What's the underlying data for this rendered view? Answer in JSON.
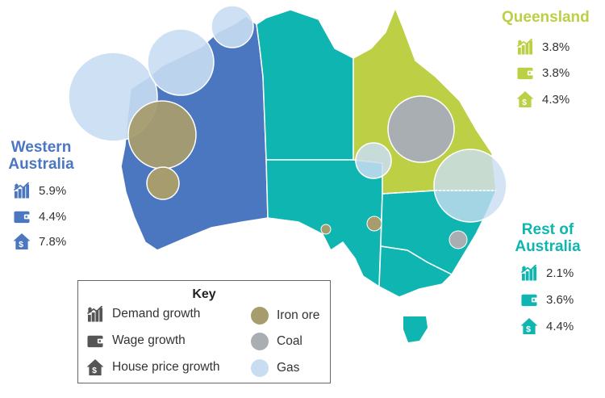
{
  "colors": {
    "western_australia": "#4a77bf",
    "queensland": "#bccf45",
    "rest_of_australia": "#0fb5b0",
    "iron_ore": "#a79c6e",
    "coal": "#a9aeb3",
    "gas": "#c9ddf2",
    "icon_grey": "#555555"
  },
  "regions": {
    "western_australia": {
      "title_line1": "Western",
      "title_line2": "Australia",
      "demand_growth": "5.9%",
      "wage_growth": "4.4%",
      "house_price_growth": "7.8%"
    },
    "queensland": {
      "title": "Queensland",
      "demand_growth": "3.8%",
      "wage_growth": "3.8%",
      "house_price_growth": "4.3%"
    },
    "rest_of_australia": {
      "title_line1": "Rest of",
      "title_line2": "Australia",
      "demand_growth": "2.1%",
      "wage_growth": "3.6%",
      "house_price_growth": "4.4%"
    }
  },
  "key": {
    "title": "Key",
    "demand_growth": "Demand growth",
    "wage_growth": "Wage growth",
    "house_price_growth": "House price growth",
    "iron_ore": "Iron ore",
    "coal": "Coal",
    "gas": "Gas"
  },
  "icons": {
    "demand": "bar-chart-dollar-icon",
    "wage": "wallet-icon",
    "house": "house-dollar-icon"
  }
}
